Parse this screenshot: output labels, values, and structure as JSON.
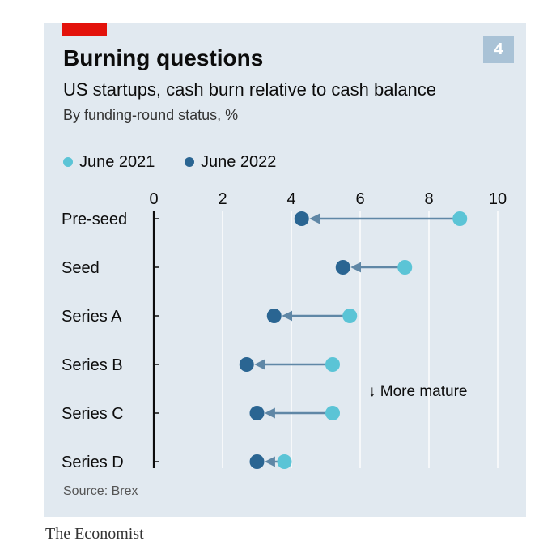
{
  "title": "Burning questions",
  "subtitle": "US startups, cash burn relative to cash balance",
  "subsubtitle": "By funding-round status, %",
  "chart_number": "4",
  "source": "Source: Brex",
  "brand": "The Economist",
  "annotation": "↓ More mature",
  "colors": {
    "accent_red": "#e3120b",
    "june_2021": "#5bc4d6",
    "june_2022": "#2a6592",
    "arrow": "#5f87a6",
    "panel": "#e1e9f0"
  },
  "chart_data": {
    "type": "dot-arrow",
    "title": "Burning questions",
    "subtitle": "US startups, cash burn relative to cash balance",
    "unit_note": "By funding-round status, %",
    "categories": [
      "Pre-seed",
      "Seed",
      "Series A",
      "Series B",
      "Series C",
      "Series D"
    ],
    "series": [
      {
        "name": "June 2021",
        "color": "#5bc4d6",
        "values": [
          8.9,
          7.3,
          5.7,
          5.2,
          5.2,
          3.8
        ]
      },
      {
        "name": "June 2022",
        "color": "#2a6592",
        "values": [
          4.3,
          5.5,
          3.5,
          2.7,
          3.0,
          3.0
        ]
      }
    ],
    "xlim": [
      0,
      10
    ],
    "xticks": [
      0,
      2,
      4,
      6,
      8,
      10
    ],
    "grid": true,
    "legend_position": "top-left",
    "source": "Source: Brex"
  }
}
